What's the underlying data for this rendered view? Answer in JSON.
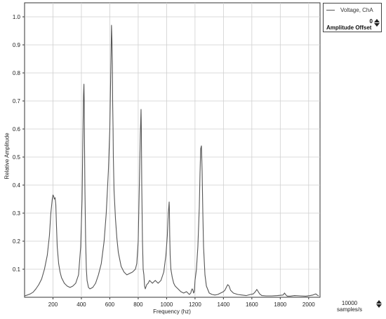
{
  "legend": {
    "series_label": "Voltage, ChA",
    "offset_value": "0",
    "offset_label": "Amplitude Offset"
  },
  "sampling": {
    "value": "10000",
    "unit": "samples/s"
  },
  "chart_data": {
    "type": "line",
    "xlabel": "Frequency (hz)",
    "ylabel": "Relative Amplitude",
    "xlim": [
      0,
      2080
    ],
    "ylim": [
      0,
      1.05
    ],
    "grid": true,
    "legend_position": "top-right",
    "xticks": [
      200,
      400,
      600,
      800,
      1000,
      1200,
      1400,
      1600,
      1800,
      2000
    ],
    "yticks": [
      0.1,
      0.2,
      0.3,
      0.4,
      0.5,
      0.6,
      0.7,
      0.8,
      0.9,
      1.0
    ],
    "series": [
      {
        "name": "Voltage, ChA",
        "color": "#555555",
        "x": [
          0,
          20,
          40,
          60,
          80,
          100,
          120,
          140,
          160,
          175,
          185,
          195,
          200,
          205,
          210,
          215,
          220,
          225,
          230,
          240,
          250,
          260,
          280,
          300,
          320,
          340,
          360,
          380,
          395,
          405,
          410,
          415,
          418,
          420,
          422,
          425,
          430,
          435,
          440,
          450,
          460,
          480,
          500,
          520,
          540,
          560,
          575,
          590,
          600,
          605,
          610,
          612,
          615,
          618,
          620,
          623,
          625,
          630,
          640,
          650,
          660,
          680,
          700,
          720,
          740,
          760,
          780,
          790,
          800,
          808,
          815,
          820,
          822,
          825,
          830,
          835,
          840,
          845,
          850,
          860,
          870,
          880,
          900,
          920,
          940,
          960,
          980,
          995,
          1005,
          1012,
          1018,
          1020,
          1022,
          1025,
          1030,
          1040,
          1050,
          1060,
          1080,
          1100,
          1120,
          1140,
          1160,
          1170,
          1175,
          1180,
          1185,
          1190,
          1195,
          1200,
          1210,
          1220,
          1230,
          1235,
          1240,
          1245,
          1250,
          1255,
          1260,
          1270,
          1280,
          1300,
          1320,
          1340,
          1360,
          1380,
          1400,
          1410,
          1420,
          1430,
          1440,
          1450,
          1470,
          1500,
          1530,
          1560,
          1590,
          1610,
          1625,
          1635,
          1645,
          1655,
          1670,
          1700,
          1740,
          1780,
          1820,
          1830,
          1840,
          1850,
          1870,
          1900,
          1940,
          1980,
          2010,
          2030,
          2040,
          2050,
          2060,
          2070
        ],
        "y": [
          0.005,
          0.008,
          0.012,
          0.018,
          0.03,
          0.045,
          0.065,
          0.1,
          0.15,
          0.22,
          0.3,
          0.35,
          0.365,
          0.36,
          0.35,
          0.355,
          0.33,
          0.25,
          0.18,
          0.12,
          0.09,
          0.07,
          0.05,
          0.04,
          0.035,
          0.04,
          0.05,
          0.08,
          0.18,
          0.35,
          0.55,
          0.72,
          0.76,
          0.7,
          0.55,
          0.38,
          0.2,
          0.1,
          0.06,
          0.035,
          0.03,
          0.035,
          0.05,
          0.08,
          0.12,
          0.2,
          0.3,
          0.45,
          0.6,
          0.75,
          0.9,
          0.97,
          0.92,
          0.83,
          0.7,
          0.6,
          0.5,
          0.38,
          0.28,
          0.21,
          0.16,
          0.11,
          0.09,
          0.08,
          0.085,
          0.09,
          0.1,
          0.12,
          0.2,
          0.4,
          0.58,
          0.67,
          0.6,
          0.4,
          0.2,
          0.1,
          0.08,
          0.04,
          0.03,
          0.045,
          0.05,
          0.06,
          0.05,
          0.06,
          0.05,
          0.06,
          0.09,
          0.15,
          0.22,
          0.3,
          0.34,
          0.3,
          0.22,
          0.15,
          0.1,
          0.07,
          0.05,
          0.04,
          0.03,
          0.02,
          0.015,
          0.02,
          0.01,
          0.015,
          0.025,
          0.03,
          0.025,
          0.015,
          0.02,
          0.06,
          0.1,
          0.18,
          0.32,
          0.44,
          0.53,
          0.54,
          0.45,
          0.3,
          0.18,
          0.08,
          0.04,
          0.015,
          0.01,
          0.008,
          0.01,
          0.015,
          0.02,
          0.025,
          0.035,
          0.045,
          0.04,
          0.025,
          0.015,
          0.01,
          0.008,
          0.006,
          0.01,
          0.012,
          0.02,
          0.028,
          0.02,
          0.012,
          0.006,
          0.005,
          0.005,
          0.006,
          0.008,
          0.015,
          0.008,
          0.004,
          0.004,
          0.006,
          0.005,
          0.004,
          0.006,
          0.008,
          0.01,
          0.012,
          0.008,
          0.005
        ]
      }
    ]
  }
}
